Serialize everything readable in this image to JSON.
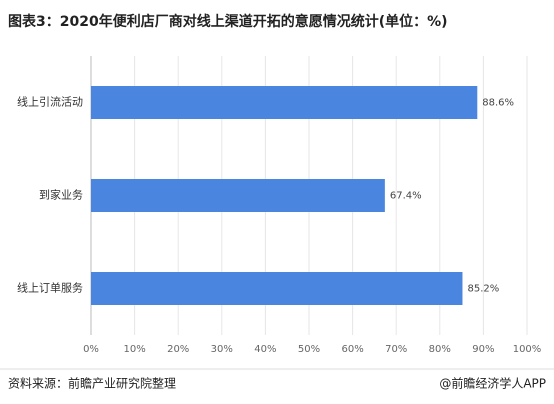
{
  "chart_data": {
    "type": "bar",
    "orientation": "horizontal",
    "title": "图表3：2020年便利店厂商对线上渠道开拓的意愿情况统计(单位：%)",
    "categories": [
      "线上引流活动",
      "到家业务",
      "线上订单服务"
    ],
    "values": [
      88.6,
      67.4,
      85.2
    ],
    "value_labels": [
      "88.6%",
      "67.4%",
      "85.2%"
    ],
    "color": "#4a86e0",
    "xlim": [
      0,
      100
    ],
    "xticks": [
      {
        "value": 0,
        "label": "0%"
      },
      {
        "value": 10,
        "label": "10%"
      },
      {
        "value": 20,
        "label": "20%"
      },
      {
        "value": 30,
        "label": "30%"
      },
      {
        "value": 40,
        "label": "40%"
      },
      {
        "value": 50,
        "label": "50%"
      },
      {
        "value": 60,
        "label": "60%"
      },
      {
        "value": 70,
        "label": "70%"
      },
      {
        "value": 80,
        "label": "80%"
      },
      {
        "value": 90,
        "label": "90%"
      },
      {
        "value": 100,
        "label": "100%"
      }
    ],
    "grid": true,
    "source": "资料来源：前瞻产业研究院整理",
    "credit": "@前瞻经济学人APP"
  }
}
